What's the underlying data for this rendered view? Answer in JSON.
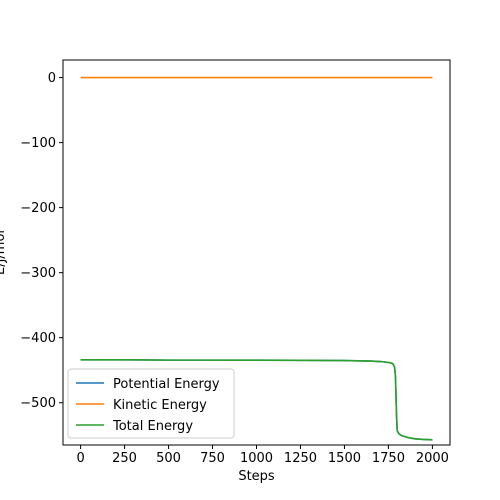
{
  "chart_data": {
    "type": "line",
    "title": "",
    "xlabel": "Steps",
    "ylabel": "E/J/mol",
    "xlim": [
      -100,
      2100
    ],
    "ylim": [
      -565,
      27
    ],
    "xticks": [
      0,
      250,
      500,
      750,
      1000,
      1250,
      1500,
      1750,
      2000
    ],
    "yticks": [
      0,
      -100,
      -200,
      -300,
      -400,
      -500
    ],
    "grid": false,
    "legend_position": "lower-left",
    "series": [
      {
        "name": "Potential Energy",
        "color": "#1f77b4",
        "x": [
          0,
          250,
          500,
          750,
          1000,
          1250,
          1500,
          1650,
          1720,
          1760,
          1775,
          1785,
          1790,
          1793,
          1796,
          1800,
          1810,
          1830,
          1860,
          1900,
          1950,
          2000
        ],
        "y": [
          -434,
          -434,
          -434.5,
          -434.5,
          -434.6,
          -434.8,
          -435.2,
          -436,
          -437,
          -438.5,
          -440,
          -445,
          -460,
          -490,
          -520,
          -543,
          -548,
          -551,
          -553.5,
          -555.5,
          -556.5,
          -557
        ]
      },
      {
        "name": "Kinetic Energy",
        "color": "#ff7f0e",
        "x": [
          0,
          250,
          500,
          750,
          1000,
          1250,
          1500,
          1750,
          2000
        ],
        "y": [
          0,
          0,
          0,
          0,
          0,
          0,
          0,
          0,
          0
        ]
      },
      {
        "name": "Total Energy",
        "color": "#2ca02c",
        "x": [
          0,
          250,
          500,
          750,
          1000,
          1250,
          1500,
          1650,
          1720,
          1760,
          1775,
          1785,
          1790,
          1793,
          1796,
          1800,
          1810,
          1830,
          1860,
          1900,
          1950,
          2000
        ],
        "y": [
          -434,
          -434,
          -434.5,
          -434.5,
          -434.6,
          -434.8,
          -435.2,
          -436,
          -437,
          -438.5,
          -440,
          -445,
          -460,
          -490,
          -520,
          -543,
          -548,
          -551,
          -553.5,
          -555.5,
          -556.5,
          -557
        ]
      }
    ]
  }
}
